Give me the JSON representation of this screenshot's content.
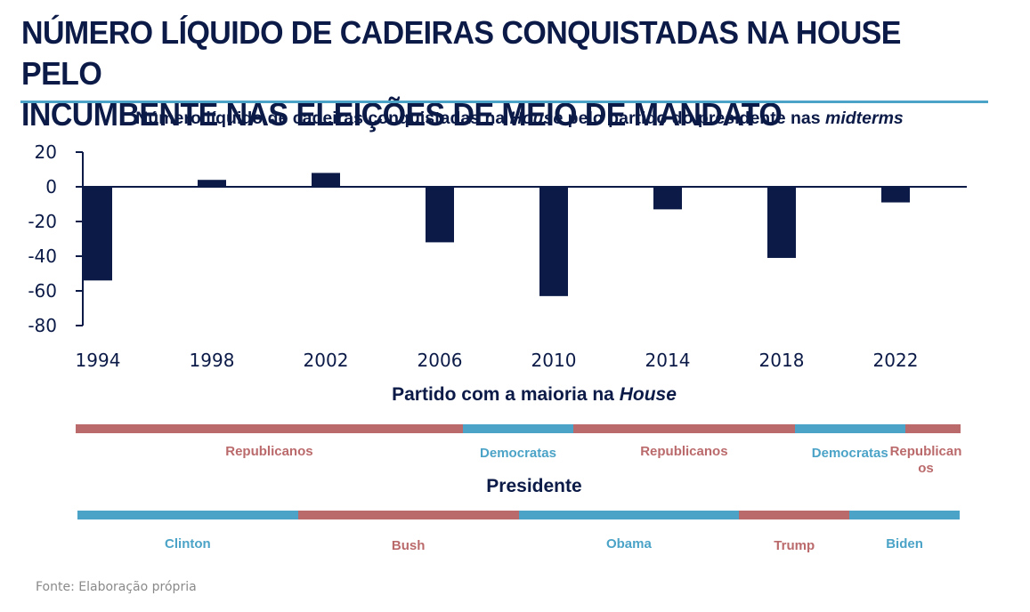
{
  "header": {
    "title_line1": "NÚMERO LÍQUIDO DE CADEIRAS CONQUISTADAS NA HOUSE PELO",
    "title_line2": "INCUMBENTE NAS ELEIÇÕES DE MEIO DE MANDATO",
    "rule_color": "#4ba3c7"
  },
  "chart_data": {
    "type": "bar",
    "title_parts": {
      "part1": "Número líquido de cadeiras conquistadas na ",
      "italic1": "House",
      "part2": " pelo partido do presidente nas ",
      "italic2": "midterms"
    },
    "title": "Número líquido de cadeiras conquistadas na House pelo partido do presidente nas midterms",
    "categories": [
      "1994",
      "1998",
      "2002",
      "2006",
      "2010",
      "2014",
      "2018",
      "2022"
    ],
    "values": [
      -54,
      4,
      8,
      -32,
      -63,
      -13,
      -41,
      -9
    ],
    "xlabel": "",
    "ylabel": "",
    "ylim": [
      -80,
      20
    ],
    "yticks": [
      20,
      0,
      -20,
      -40,
      -60,
      -80
    ],
    "ytick_labels": [
      "20",
      "0",
      "-20",
      "-40",
      "-60",
      "-80"
    ],
    "grid": false,
    "legend": "none",
    "bar_color": "#0b1a47"
  },
  "house_majority": {
    "title_part1": "Partido com a maioria na ",
    "title_italic": "House",
    "segments": [
      {
        "label": "Republicanos",
        "party": "R",
        "from": 1993,
        "to": 2007
      },
      {
        "label": "Democratas",
        "party": "D",
        "from": 2007,
        "to": 2011
      },
      {
        "label": "Republicanos",
        "party": "R",
        "from": 2011,
        "to": 2019
      },
      {
        "label": "Democratas",
        "party": "D",
        "from": 2019,
        "to": 2023
      },
      {
        "label": "Republicanos",
        "party": "R",
        "from": 2023,
        "to": 2025
      }
    ]
  },
  "president": {
    "title": "Presidente",
    "segments": [
      {
        "label": "Clinton",
        "party": "D",
        "from": 1993,
        "to": 2001
      },
      {
        "label": "Bush",
        "party": "R",
        "from": 2001,
        "to": 2009
      },
      {
        "label": "Obama",
        "party": "D",
        "from": 2009,
        "to": 2017
      },
      {
        "label": "Trump",
        "party": "R",
        "from": 2017,
        "to": 2021
      },
      {
        "label": "Biden",
        "party": "D",
        "from": 2021,
        "to": 2025
      }
    ]
  },
  "colors": {
    "R": "#bb6a6c",
    "D": "#4ba3c7",
    "text_dark": "#0b1a47",
    "source": "#8a8a8a"
  },
  "footer": {
    "source": "Fonte: Elaboração própria"
  }
}
